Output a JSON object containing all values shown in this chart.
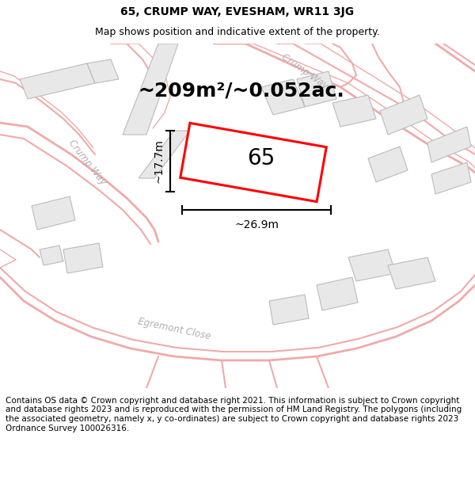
{
  "title_line1": "65, CRUMP WAY, EVESHAM, WR11 3JG",
  "title_line2": "Map shows position and indicative extent of the property.",
  "area_text": "~209m²/~0.052ac.",
  "label_65": "65",
  "dim_height": "~17.7m",
  "dim_width": "~26.9m",
  "footer_text": "Contains OS data © Crown copyright and database right 2021. This information is subject to Crown copyright and database rights 2023 and is reproduced with the permission of HM Land Registry. The polygons (including the associated geometry, namely x, y co-ordinates) are subject to Crown copyright and database rights 2023 Ordnance Survey 100026316.",
  "bg_map_color": "#ffffff",
  "road_line_color": "#f0aaaa",
  "building_fill_color": "#e8e8e8",
  "building_edge_color": "#bbbbbb",
  "plot_outline_color": "#ff0000",
  "plot_fill_color": "#ffffff",
  "title_fontsize": 10,
  "subtitle_fontsize": 9,
  "area_fontsize": 18,
  "label_fontsize": 20,
  "dim_fontsize": 10,
  "footer_fontsize": 7.5,
  "road_label_color": "#b0b0b0",
  "road_label_fontsize": 8.5
}
